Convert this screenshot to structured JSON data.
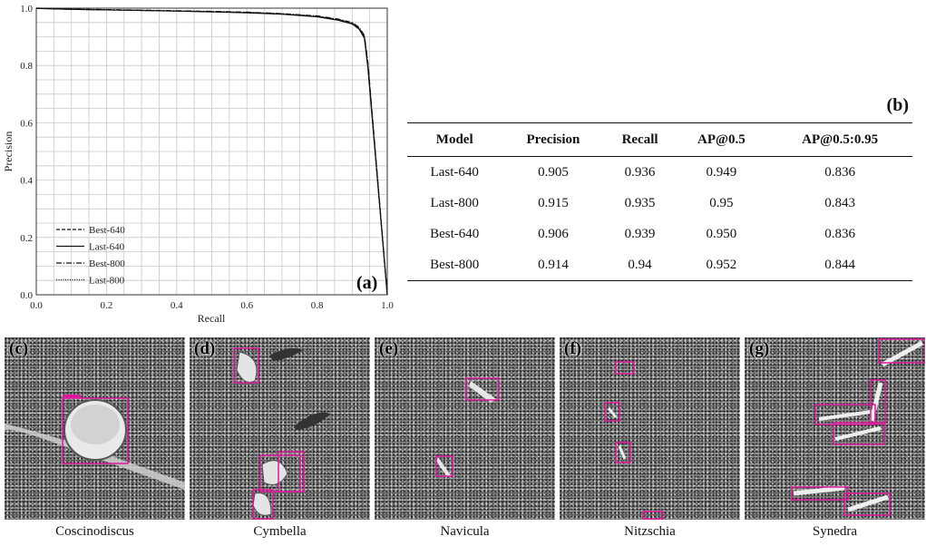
{
  "chart_data": {
    "type": "line",
    "xlabel": "Recall",
    "ylabel": "Precision",
    "xlim": [
      0,
      1
    ],
    "ylim": [
      0,
      1
    ],
    "x_ticks": [
      "0.0",
      "0.2",
      "0.4",
      "0.6",
      "0.8",
      "1.0"
    ],
    "y_ticks": [
      "0.0",
      "0.2",
      "0.4",
      "0.6",
      "0.8",
      "1.0"
    ],
    "grid": true,
    "legend_position": "bottom-left",
    "panel_label": "(a)",
    "series": [
      {
        "name": "Best-640",
        "style": "dashed",
        "x": [
          0,
          0.1,
          0.2,
          0.3,
          0.4,
          0.5,
          0.6,
          0.7,
          0.8,
          0.86,
          0.9,
          0.92,
          0.935,
          0.945,
          1.0
        ],
        "y": [
          1.0,
          0.996,
          0.994,
          0.992,
          0.99,
          0.988,
          0.985,
          0.98,
          0.971,
          0.96,
          0.948,
          0.93,
          0.9,
          0.8,
          0.0
        ]
      },
      {
        "name": "Last-640",
        "style": "solid",
        "x": [
          0,
          0.1,
          0.2,
          0.3,
          0.4,
          0.5,
          0.6,
          0.7,
          0.8,
          0.86,
          0.9,
          0.92,
          0.935,
          0.945,
          1.0
        ],
        "y": [
          0.999,
          0.996,
          0.994,
          0.992,
          0.99,
          0.987,
          0.984,
          0.979,
          0.97,
          0.958,
          0.945,
          0.927,
          0.895,
          0.79,
          0.0
        ]
      },
      {
        "name": "Best-800",
        "style": "dashdot",
        "x": [
          0,
          0.1,
          0.2,
          0.3,
          0.4,
          0.5,
          0.6,
          0.7,
          0.8,
          0.86,
          0.9,
          0.92,
          0.935,
          0.945,
          1.0
        ],
        "y": [
          1.0,
          0.997,
          0.995,
          0.993,
          0.991,
          0.989,
          0.986,
          0.981,
          0.973,
          0.962,
          0.95,
          0.933,
          0.905,
          0.81,
          0.0
        ]
      },
      {
        "name": "Last-800",
        "style": "dotted",
        "x": [
          0,
          0.1,
          0.2,
          0.3,
          0.4,
          0.5,
          0.6,
          0.7,
          0.8,
          0.86,
          0.9,
          0.92,
          0.935,
          0.945,
          1.0
        ],
        "y": [
          0.999,
          0.996,
          0.994,
          0.992,
          0.99,
          0.988,
          0.985,
          0.98,
          0.972,
          0.96,
          0.947,
          0.93,
          0.9,
          0.8,
          0.0
        ]
      }
    ]
  },
  "table": {
    "panel_label": "(b)",
    "headers": [
      "Model",
      "Precision",
      "Recall",
      "AP@0.5",
      "AP@0.5:0.95"
    ],
    "rows": [
      [
        "Last-640",
        "0.905",
        "0.936",
        "0.949",
        "0.836"
      ],
      [
        "Last-800",
        "0.915",
        "0.935",
        "0.95",
        "0.843"
      ],
      [
        "Best-640",
        "0.906",
        "0.939",
        "0.950",
        "0.836"
      ],
      [
        "Best-800",
        "0.914",
        "0.94",
        "0.952",
        "0.844"
      ]
    ]
  },
  "micrographs": [
    {
      "label": "(c)",
      "caption": "Coscinodiscus"
    },
    {
      "label": "(d)",
      "caption": "Cymbella"
    },
    {
      "label": "(e)",
      "caption": "Navicula"
    },
    {
      "label": "(f)",
      "caption": "Nitzschia"
    },
    {
      "label": "(g)",
      "caption": "Synedra"
    }
  ],
  "colors": {
    "detection_box": "#e0189c",
    "curve": "#111111",
    "grid": "#c8c8c8"
  }
}
